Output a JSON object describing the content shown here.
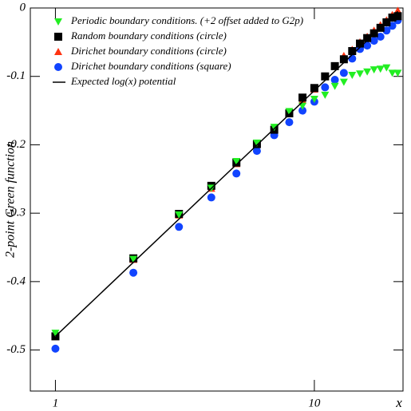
{
  "chart_data": {
    "type": "scatter",
    "y_label": "2-point Green function",
    "x_label": "x",
    "x": [
      1,
      2,
      3,
      4,
      5,
      6,
      7,
      8,
      9,
      10,
      11,
      12,
      13,
      14,
      15,
      16,
      17,
      18,
      19,
      20,
      21
    ],
    "xlim": [
      0.8,
      22
    ],
    "xticks": [
      1,
      10
    ],
    "x_log": true,
    "ylim": [
      -0.56,
      0
    ],
    "yticks": [
      0,
      -0.1,
      -0.2,
      -0.3,
      -0.4,
      -0.5
    ],
    "legend": "top-left",
    "series": [
      {
        "name": "Periodic boundary conditions. (+2 offset added to G2p)",
        "color": "#22ee22",
        "marker": "triangle-down",
        "values": [
          -0.475,
          -0.367,
          -0.302,
          -0.263,
          -0.224,
          -0.197,
          -0.174,
          -0.151,
          -0.143,
          -0.133,
          -0.127,
          -0.114,
          -0.108,
          -0.098,
          -0.096,
          -0.093,
          -0.09,
          -0.089,
          -0.087,
          -0.095,
          -0.095
        ]
      },
      {
        "name": "Random boundary conditions (circle)",
        "color": "#000000",
        "marker": "square",
        "values": [
          -0.48,
          -0.366,
          -0.301,
          -0.26,
          -0.226,
          -0.199,
          -0.178,
          -0.154,
          -0.131,
          -0.117,
          -0.1,
          -0.085,
          -0.075,
          -0.063,
          -0.052,
          -0.044,
          -0.037,
          -0.029,
          -0.021,
          -0.014,
          -0.012
        ]
      },
      {
        "name": "Dirichet boundary conditions (circle)",
        "color": "#ff3311",
        "marker": "triangle-up",
        "values": [
          -0.481,
          -0.368,
          -0.303,
          -0.264,
          -0.228,
          -0.2,
          -0.176,
          -0.152,
          -0.135,
          -0.119,
          -0.1,
          -0.085,
          -0.07,
          -0.061,
          -0.05,
          -0.042,
          -0.033,
          -0.025,
          -0.018,
          -0.01,
          -0.004
        ]
      },
      {
        "name": "Dirichet boundary conditions (square)",
        "color": "#1144ff",
        "marker": "circle",
        "values": [
          -0.498,
          -0.387,
          -0.32,
          -0.277,
          -0.242,
          -0.209,
          -0.186,
          -0.167,
          -0.15,
          -0.137,
          -0.116,
          -0.105,
          -0.095,
          -0.074,
          -0.06,
          -0.055,
          -0.048,
          -0.042,
          -0.033,
          -0.026,
          -0.018
        ]
      },
      {
        "name": "Expected log(x) potential",
        "color": "#000000",
        "marker": "line",
        "x": [
          1,
          21
        ],
        "values": [
          -0.48,
          -0.005
        ]
      }
    ]
  }
}
